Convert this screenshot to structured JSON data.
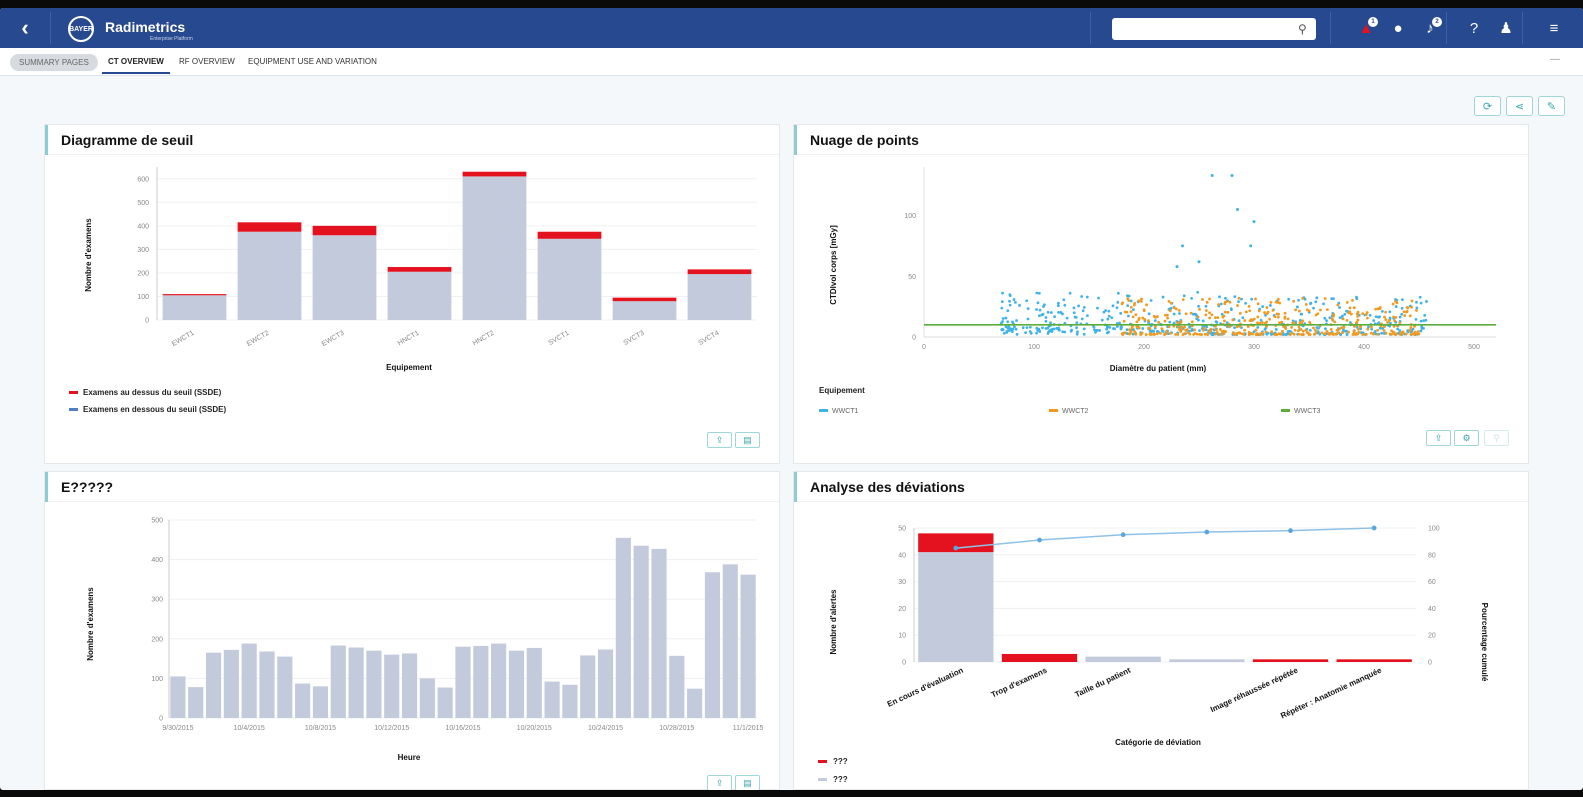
{
  "topbar": {
    "brand": "Radimetrics",
    "brand_sub": "Enterprise Platform",
    "logo_text": "BAYER",
    "search_placeholder": "",
    "badges": {
      "alerts": "1",
      "notifications": "2"
    }
  },
  "tabs": {
    "crumb": "SUMMARY PAGES",
    "items": [
      "CT OVERVIEW",
      "RF OVERVIEW",
      "EQUIPMENT USE AND VARIATION"
    ],
    "active": 0
  },
  "panels": {
    "threshold": {
      "title": "Diagramme de seuil",
      "xlabel": "Equipement",
      "ylabel": "Nombre d'examens",
      "legend_above": "Examens au dessus du seuil (SSDE)",
      "legend_below": "Examens en dessous du seuil (SSDE)",
      "color_above": "#e3121e",
      "color_below": "#c2cadb"
    },
    "scatter": {
      "title": "Nuage de points",
      "xlabel": "Diamètre du patient (mm)",
      "ylabel": "CTDIvol corps [mGy]",
      "legend_title": "Equipement",
      "series_names": [
        "WWCT1",
        "WWCT2",
        "WWCT3"
      ],
      "colors": [
        "#3fb2e8",
        "#f19a1f",
        "#5cae3b"
      ]
    },
    "hourly": {
      "title": "E?????",
      "xlabel": "Heure",
      "ylabel": "Nombre d'examens"
    },
    "deviation": {
      "title": "Analyse des déviations",
      "xlabel": "Catégorie de déviation",
      "ylabel": "Nombre d'alertes",
      "ylabel_right": "Pourcentage cumulé",
      "legend_1": "???",
      "legend_2": "???"
    }
  },
  "chart_data": [
    {
      "type": "bar",
      "stacked": true,
      "categories": [
        "EWCT1",
        "EWCT2",
        "EWCT3",
        "HNCT1",
        "HNCT2",
        "SVCT1",
        "SVCT3",
        "SVCT4"
      ],
      "series": [
        {
          "name": "Examens en dessous du seuil (SSDE)",
          "values": [
            105,
            375,
            360,
            205,
            610,
            345,
            80,
            195
          ]
        },
        {
          "name": "Examens au dessus du seuil (SSDE)",
          "values": [
            5,
            40,
            40,
            20,
            20,
            30,
            15,
            20
          ]
        }
      ],
      "yticks": [
        0,
        100,
        200,
        300,
        400,
        500,
        600
      ],
      "ylim": [
        0,
        650
      ],
      "xlabel": "Equipement",
      "ylabel": "Nombre d'examens",
      "title": "Diagramme de seuil"
    },
    {
      "type": "scatter",
      "series_names": [
        "WWCT1",
        "WWCT2",
        "WWCT3"
      ],
      "xticks": [
        0,
        100,
        200,
        300,
        400,
        500
      ],
      "yticks": [
        0,
        50,
        100
      ],
      "xlim": [
        0,
        520
      ],
      "ylim": [
        0,
        140
      ],
      "reference_line_y": 10,
      "xlabel": "Diamètre du patient (mm)",
      "ylabel": "CTDIvol corps [mGy]",
      "title": "Nuage de points"
    },
    {
      "type": "bar",
      "values": [
        105,
        78,
        165,
        172,
        188,
        168,
        155,
        87,
        80,
        183,
        178,
        170,
        160,
        163,
        100,
        77,
        180,
        182,
        188,
        170,
        177,
        92,
        84,
        158,
        173,
        455,
        435,
        427,
        157,
        74,
        368,
        388,
        362
      ],
      "xtick_labels": [
        "9/30/2015",
        "10/4/2015",
        "10/8/2015",
        "10/12/2015",
        "10/16/2015",
        "10/20/2015",
        "10/24/2015",
        "10/28/2015",
        "11/1/2015"
      ],
      "yticks": [
        0,
        100,
        200,
        300,
        400,
        500
      ],
      "ylim": [
        0,
        500
      ],
      "xlabel": "Heure",
      "ylabel": "Nombre d'examens",
      "title": "E?????"
    },
    {
      "type": "bar",
      "categories": [
        "En cours d'évaluation",
        "Trop d'examens",
        "Taille du patient",
        "",
        "Image réhaussée répétée",
        "Répéter : Anatomie manquée"
      ],
      "series": [
        {
          "name": "???",
          "values": [
            41,
            0,
            2,
            1,
            0,
            0
          ]
        },
        {
          "name": "???",
          "values": [
            7,
            3,
            0,
            0,
            1,
            1
          ]
        }
      ],
      "cumulative_percent": [
        85,
        91,
        95,
        97,
        98,
        100
      ],
      "yticks": [
        0,
        10,
        20,
        30,
        40,
        50
      ],
      "yticks_right": [
        0,
        20,
        40,
        60,
        80,
        100
      ],
      "ylim": [
        0,
        50
      ],
      "xlabel": "Catégorie de déviation",
      "ylabel": "Nombre d'alertes",
      "ylabel_right": "Pourcentage cumulé",
      "title": "Analyse des déviations"
    }
  ]
}
